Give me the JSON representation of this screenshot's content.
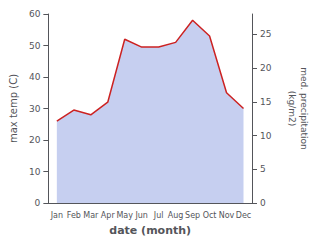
{
  "chart_data": {
    "type": "area",
    "categories": [
      "Jan",
      "Feb",
      "Mar",
      "Apr",
      "May",
      "Jun",
      "Jul",
      "Aug",
      "Sep",
      "Oct",
      "Nov",
      "Dec"
    ],
    "series": [
      {
        "color": "#cc2222",
        "values": [
          26,
          29.5,
          28,
          32,
          52,
          49.5,
          49.5,
          51,
          58,
          53,
          35,
          30
        ]
      }
    ],
    "color": "#c0caee",
    "xlabel": "date (month)",
    "ylabel": "max temp (C)",
    "y2label": "med. precipitation\n(kg/m2)",
    "ylim": [
      0,
      60
    ],
    "yticks": [
      0,
      10,
      20,
      30,
      40,
      50,
      60
    ],
    "y2lim": [
      0,
      28
    ],
    "y2ticks": [
      0,
      5,
      10,
      15,
      20,
      25
    ],
    "grid": false
  }
}
